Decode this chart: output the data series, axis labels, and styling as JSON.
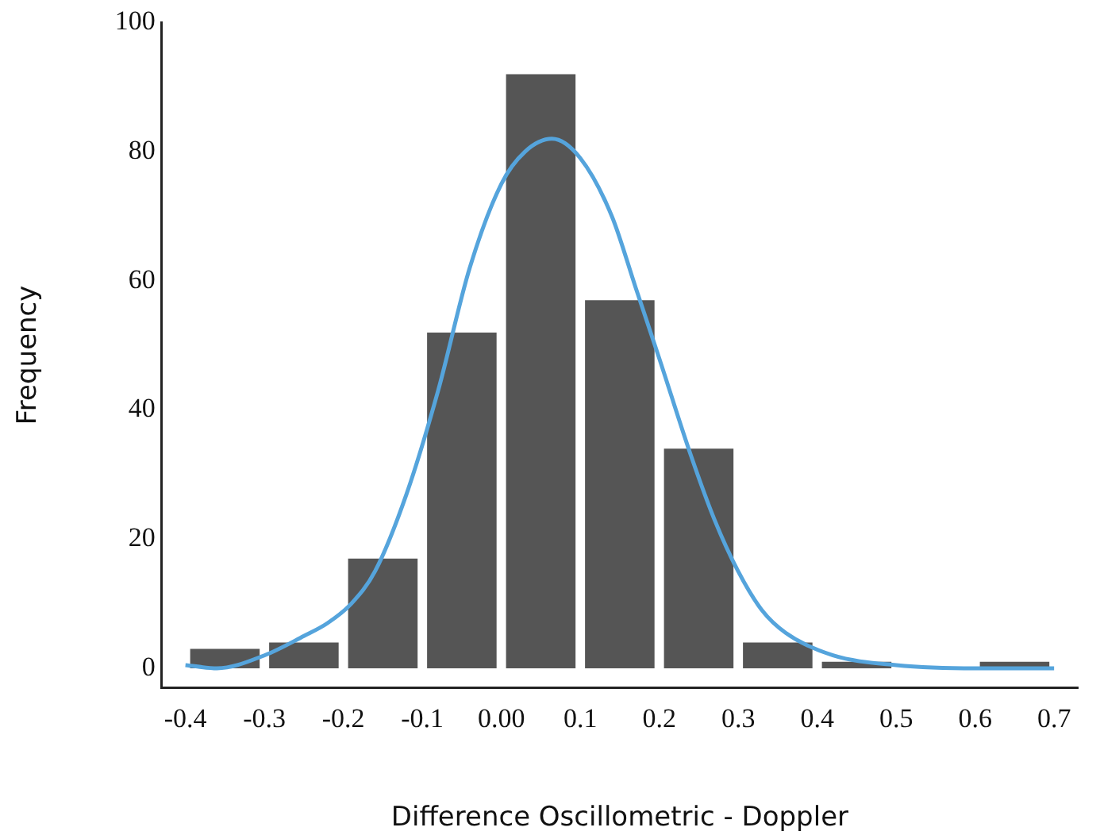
{
  "chart_data": {
    "type": "histogram",
    "xlabel": "Difference Oscillometric - Doppler",
    "ylabel": "Frequency",
    "bins": [
      -0.4,
      -0.3,
      -0.2,
      -0.1,
      0,
      0.1,
      0.2,
      0.3,
      0.4,
      0.5,
      0.6,
      0.7
    ],
    "values": [
      3,
      4,
      17,
      52,
      92,
      57,
      34,
      4,
      1,
      0,
      1
    ],
    "color": "#555555",
    "series": [
      {
        "type": "line",
        "color": "#55a4dc",
        "x": [
          -0.4,
          -0.36,
          -0.3,
          -0.25,
          -0.22,
          -0.19,
          -0.16,
          -0.12,
          -0.08,
          -0.04,
          0,
          0.03,
          0.064,
          0.1,
          0.14,
          0.17,
          0.2,
          0.24,
          0.27,
          0.3,
          0.33,
          0.36,
          0.42,
          0.5,
          0.6,
          0.7
        ],
        "values": [
          0.5,
          0,
          2,
          5,
          7,
          10,
          15,
          27,
          43,
          62,
          75,
          80,
          82,
          79,
          70,
          59,
          48,
          33,
          23,
          15,
          9,
          5.5,
          2,
          0.5,
          0,
          0
        ]
      }
    ],
    "xlim": [
      -0.43,
      0.73
    ],
    "ylim": [
      -3,
      100
    ],
    "xticks": [
      -0.4,
      -0.3,
      -0.2,
      -0.1,
      {
        "value": 0,
        "label": "0.00"
      },
      0.1,
      0.2,
      0.3,
      0.4,
      0.5,
      0.6,
      0.7
    ],
    "yticks": [
      0,
      20,
      40,
      60,
      80,
      100
    ],
    "grid": false,
    "legend": false,
    "marker": "none"
  }
}
